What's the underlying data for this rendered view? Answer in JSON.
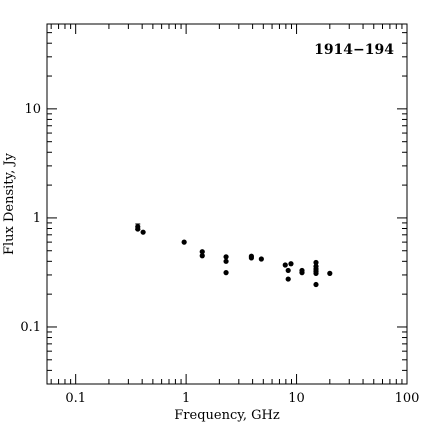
{
  "chart_data": {
    "type": "scatter",
    "title": "1914−194",
    "xlabel": "Frequency, GHz",
    "ylabel": "Flux Density, Jy",
    "xscale": "log",
    "yscale": "log",
    "xlim": [
      0.055,
      100
    ],
    "ylim": [
      0.03,
      60
    ],
    "xticks": [
      {
        "value": 0.1,
        "label": "0.1"
      },
      {
        "value": 1,
        "label": "1"
      },
      {
        "value": 10,
        "label": "10"
      },
      {
        "value": 100,
        "label": "100"
      }
    ],
    "yticks": [
      {
        "value": 0.1,
        "label": "0.1"
      },
      {
        "value": 1,
        "label": "1"
      },
      {
        "value": 10,
        "label": "10"
      }
    ],
    "grid": false,
    "title_position": "top-right",
    "marker_color": "#000000",
    "points": [
      {
        "x": 0.365,
        "y": 0.83,
        "err": 0.05
      },
      {
        "x": 0.365,
        "y": 0.79
      },
      {
        "x": 0.408,
        "y": 0.74
      },
      {
        "x": 0.96,
        "y": 0.6
      },
      {
        "x": 1.4,
        "y": 0.49
      },
      {
        "x": 1.4,
        "y": 0.45
      },
      {
        "x": 2.3,
        "y": 0.44
      },
      {
        "x": 2.3,
        "y": 0.4
      },
      {
        "x": 2.3,
        "y": 0.315
      },
      {
        "x": 3.9,
        "y": 0.445
      },
      {
        "x": 3.9,
        "y": 0.43
      },
      {
        "x": 4.8,
        "y": 0.42
      },
      {
        "x": 7.9,
        "y": 0.37
      },
      {
        "x": 8.4,
        "y": 0.33
      },
      {
        "x": 8.4,
        "y": 0.275
      },
      {
        "x": 8.9,
        "y": 0.38
      },
      {
        "x": 11.2,
        "y": 0.33
      },
      {
        "x": 11.2,
        "y": 0.315
      },
      {
        "x": 15,
        "y": 0.39
      },
      {
        "x": 15,
        "y": 0.36
      },
      {
        "x": 15,
        "y": 0.34
      },
      {
        "x": 15,
        "y": 0.325
      },
      {
        "x": 15,
        "y": 0.31
      },
      {
        "x": 15,
        "y": 0.245
      },
      {
        "x": 20,
        "y": 0.31
      }
    ]
  }
}
